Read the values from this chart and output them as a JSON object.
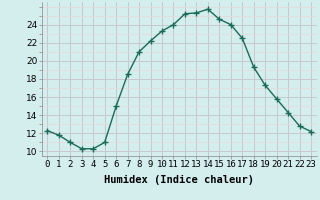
{
  "x": [
    0,
    1,
    2,
    3,
    4,
    5,
    6,
    7,
    8,
    9,
    10,
    11,
    12,
    13,
    14,
    15,
    16,
    17,
    18,
    19,
    20,
    21,
    22,
    23
  ],
  "y": [
    12.3,
    11.8,
    11.0,
    10.3,
    10.3,
    11.0,
    15.0,
    18.5,
    21.0,
    22.2,
    23.3,
    24.0,
    25.2,
    25.3,
    25.7,
    24.6,
    24.0,
    22.5,
    19.3,
    17.3,
    15.8,
    14.3,
    12.8,
    12.2
  ],
  "line_color": "#1a6b5a",
  "marker": "+",
  "marker_size": 4,
  "bg_color": "#d4eeee",
  "major_grid_color": "#c8c8d0",
  "minor_grid_color": "#e8d8d8",
  "xlabel": "Humidex (Indice chaleur)",
  "xlim": [
    -0.5,
    23.5
  ],
  "ylim": [
    9.5,
    26.5
  ],
  "yticks": [
    10,
    12,
    14,
    16,
    18,
    20,
    22,
    24
  ],
  "xticks": [
    0,
    1,
    2,
    3,
    4,
    5,
    6,
    7,
    8,
    9,
    10,
    11,
    12,
    13,
    14,
    15,
    16,
    17,
    18,
    19,
    20,
    21,
    22,
    23
  ],
  "label_fontsize": 7.5,
  "tick_fontsize": 6.5,
  "lw": 1.0
}
